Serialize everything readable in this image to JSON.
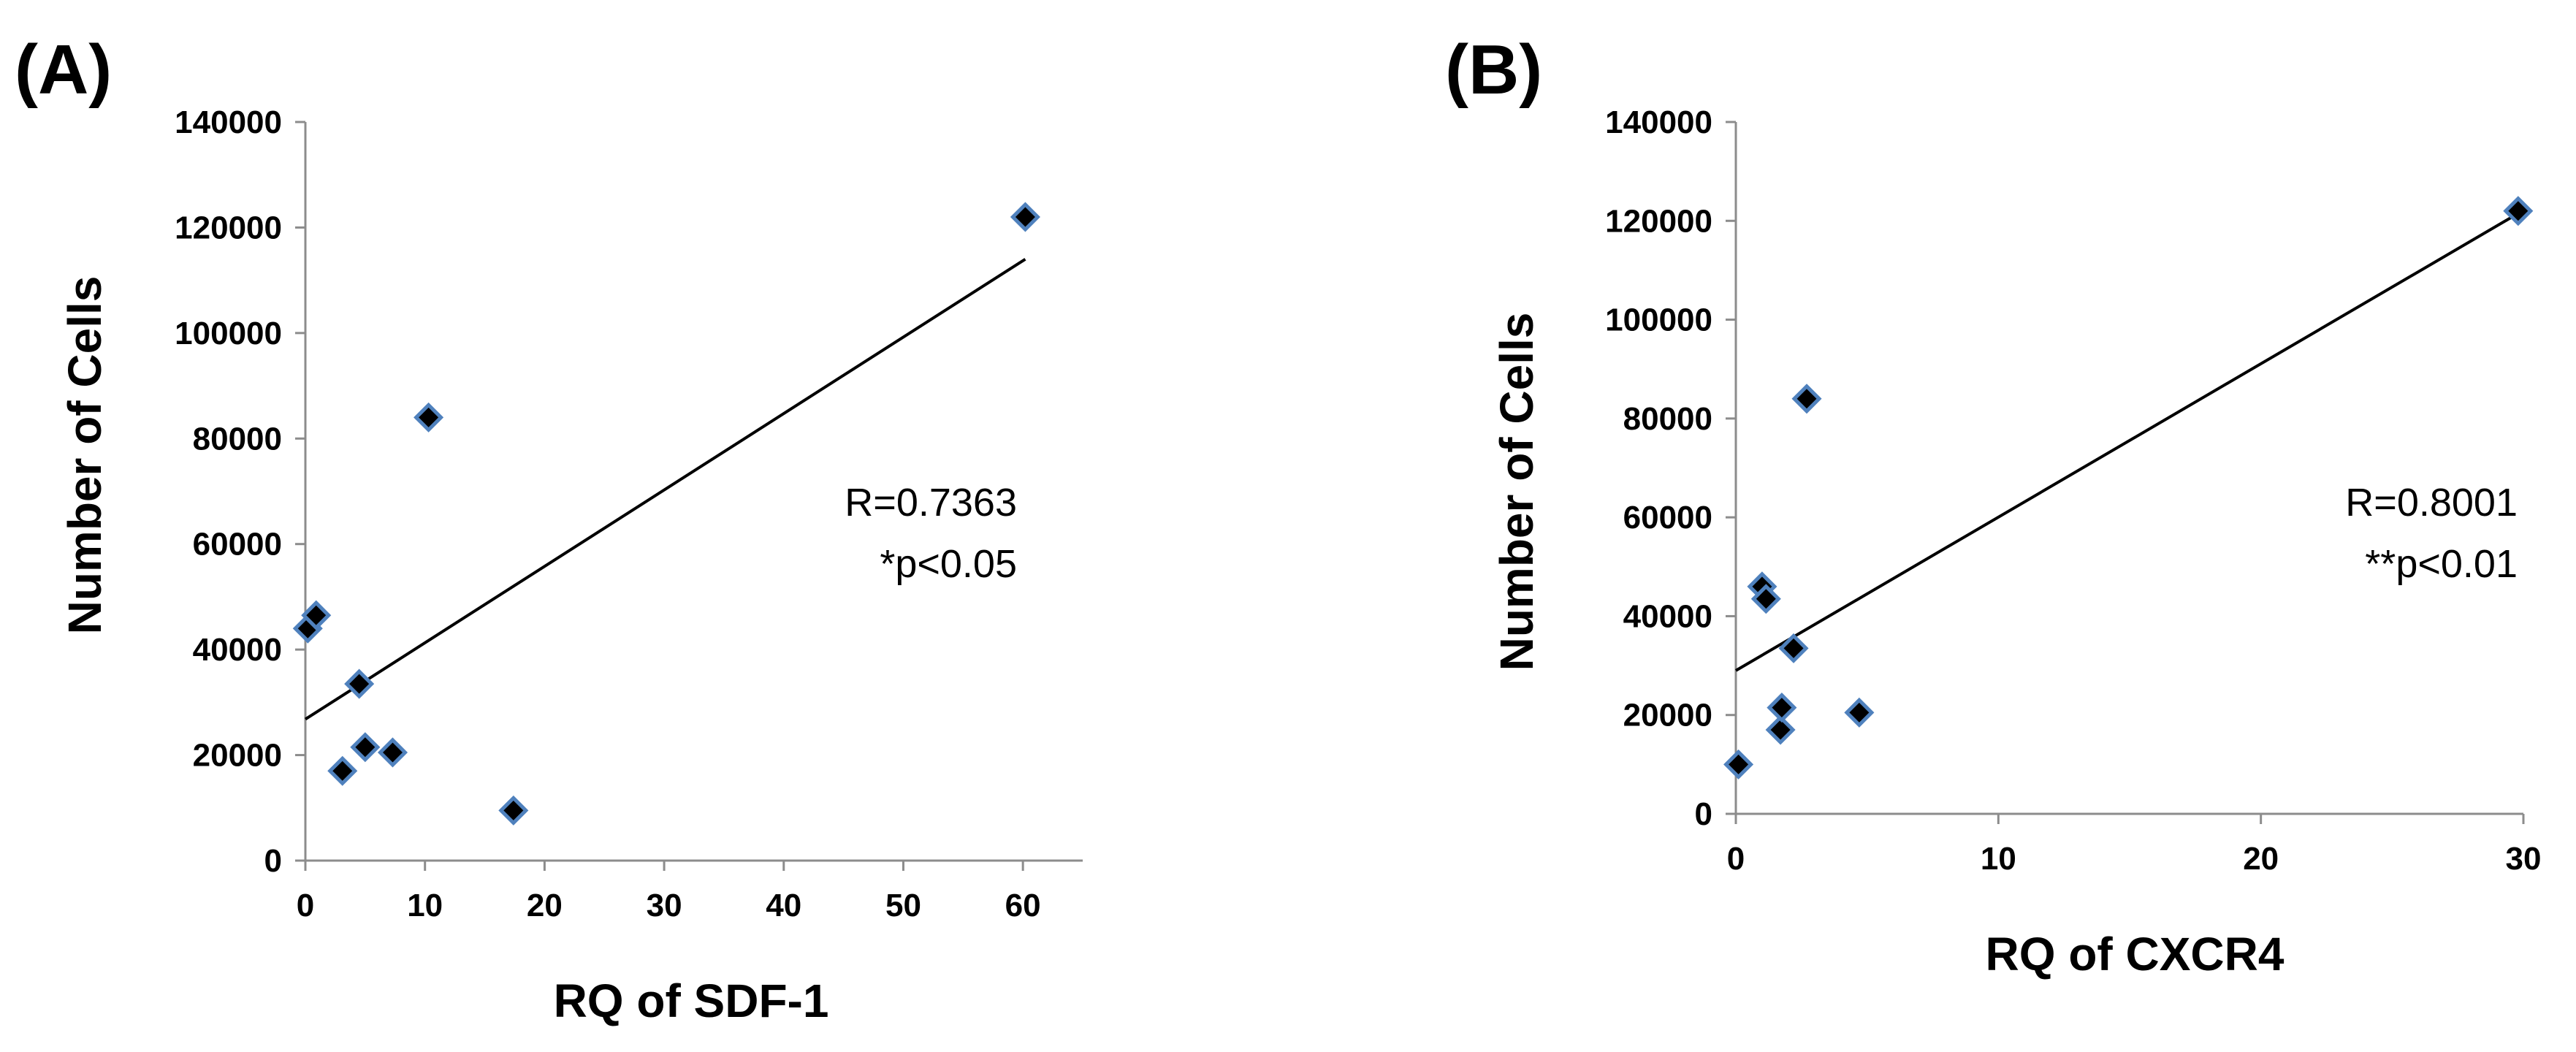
{
  "chart_data": [
    {
      "type": "scatter",
      "panel_label": "(A)",
      "xlabel": "RQ of SDF-1",
      "ylabel": "Number of Cells",
      "xlim": [
        0,
        65
      ],
      "ylim": [
        0,
        140000
      ],
      "x_ticks": [
        0,
        10,
        20,
        30,
        40,
        50,
        60
      ],
      "y_ticks": [
        0,
        20000,
        40000,
        60000,
        80000,
        100000,
        120000,
        140000
      ],
      "points": [
        {
          "x": 0.2,
          "y": 44000
        },
        {
          "x": 0.9,
          "y": 46500
        },
        {
          "x": 3.1,
          "y": 17000
        },
        {
          "x": 4.5,
          "y": 33500
        },
        {
          "x": 5.0,
          "y": 21500
        },
        {
          "x": 7.3,
          "y": 20500
        },
        {
          "x": 10.3,
          "y": 84000
        },
        {
          "x": 17.4,
          "y": 9500
        },
        {
          "x": 60.2,
          "y": 122000
        }
      ],
      "trendline": {
        "x0": 0,
        "y0": 26800,
        "x1": 60.2,
        "y1": 114000
      },
      "annotations": [
        "R=0.7363",
        "*p<0.05"
      ],
      "marker_color": "#000000",
      "marker_edge_color": "#4f81bd",
      "grid": false
    },
    {
      "type": "scatter",
      "panel_label": "(B)",
      "xlabel": "RQ of CXCR4",
      "ylabel": "Number of Cells",
      "xlim": [
        0,
        30
      ],
      "ylim": [
        0,
        140000
      ],
      "x_ticks": [
        0,
        10,
        20,
        30
      ],
      "y_ticks": [
        0,
        20000,
        40000,
        60000,
        80000,
        100000,
        120000,
        140000
      ],
      "points": [
        {
          "x": 0.1,
          "y": 10000
        },
        {
          "x": 1.0,
          "y": 46000
        },
        {
          "x": 1.15,
          "y": 43500
        },
        {
          "x": 1.7,
          "y": 17000
        },
        {
          "x": 1.75,
          "y": 21500
        },
        {
          "x": 2.2,
          "y": 33500
        },
        {
          "x": 2.7,
          "y": 84000
        },
        {
          "x": 4.7,
          "y": 20500
        },
        {
          "x": 29.8,
          "y": 122000
        }
      ],
      "trendline": {
        "x0": 0,
        "y0": 29000,
        "x1": 29.8,
        "y1": 121500
      },
      "annotations": [
        "R=0.8001",
        "**p<0.01"
      ],
      "marker_color": "#000000",
      "marker_edge_color": "#4f81bd",
      "grid": false
    }
  ]
}
